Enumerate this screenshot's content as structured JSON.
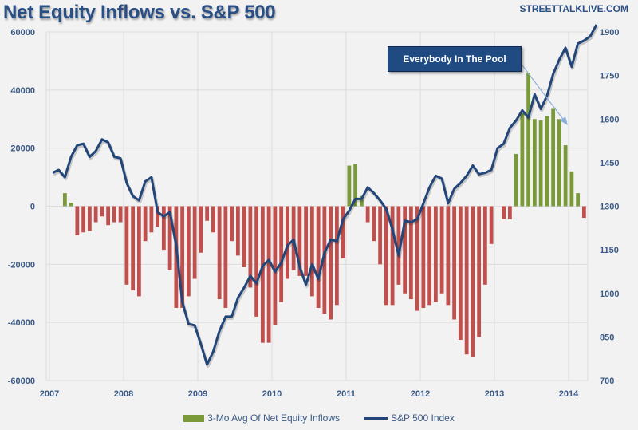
{
  "header": {
    "title": "Net Equity Inflows vs. S&P 500",
    "brand": "STREETTALKLIVE.COM"
  },
  "annotation": {
    "text": "Everybody In The Pool"
  },
  "colors": {
    "positive_bar": "#7a9a3a",
    "negative_bar": "#c0504d",
    "line": "#22457a",
    "callout_bg": "#1f4a82"
  },
  "chart_data": {
    "type": "bar+line",
    "title": "Net Equity Inflows vs. S&P 500",
    "xlabel": "",
    "ylabel_left": "",
    "ylabel_right": "",
    "x_ticks": [
      "2007",
      "2008",
      "2009",
      "2010",
      "2011",
      "2012",
      "2013",
      "2014"
    ],
    "y_left_ticks": [
      "60000",
      "40000",
      "20000",
      "0",
      "-20000",
      "-40000",
      "-60000"
    ],
    "y_left_lim": [
      -60000,
      60000
    ],
    "y_right_ticks": [
      "1900",
      "1750",
      "1600",
      "1450",
      "1300",
      "1150",
      "1000",
      "850",
      "700"
    ],
    "y_right_lim": [
      700,
      1900
    ],
    "grid": true,
    "legend_position": "bottom",
    "x_start": "2007-01",
    "frequency": "monthly",
    "series": [
      {
        "name": "3-Mo Avg Of Net Equity Inflows",
        "type": "bar",
        "axis": "left",
        "values": [
          0,
          0,
          4500,
          1200,
          -10000,
          -9000,
          -8500,
          -5500,
          -3500,
          -6500,
          -5500,
          -5500,
          -27000,
          -29000,
          -31000,
          -12000,
          -9000,
          -7000,
          -15000,
          -22000,
          -35000,
          -35000,
          -31000,
          -25000,
          -16000,
          -5000,
          -9000,
          -32000,
          -35000,
          -12000,
          -17000,
          -21000,
          -28000,
          -38000,
          -47000,
          -47000,
          -41000,
          -33000,
          -25000,
          -22000,
          -24000,
          -24000,
          -31000,
          -35000,
          -37000,
          -39000,
          -34000,
          -18000,
          14000,
          14500,
          3500,
          -5500,
          -12000,
          -20000,
          -34000,
          -34000,
          -27000,
          -30000,
          -32000,
          -36000,
          -35000,
          -34000,
          -33000,
          -30000,
          -34000,
          -39000,
          -46000,
          -51000,
          -52000,
          -45000,
          -27000,
          -13000,
          0,
          -4500,
          -4500,
          18000,
          32000,
          46000,
          30000,
          29500,
          31000,
          33500,
          30000,
          21000,
          12000,
          4500,
          -4000
        ]
      },
      {
        "name": "S&P 500 Index",
        "type": "line",
        "axis": "right",
        "values": [
          1415,
          1425,
          1400,
          1470,
          1510,
          1515,
          1470,
          1490,
          1530,
          1520,
          1470,
          1465,
          1380,
          1335,
          1320,
          1385,
          1400,
          1280,
          1265,
          1280,
          1165,
          970,
          895,
          890,
          825,
          755,
          800,
          870,
          920,
          920,
          985,
          1020,
          1060,
          1035,
          1095,
          1115,
          1075,
          1105,
          1165,
          1185,
          1090,
          1030,
          1100,
          1050,
          1140,
          1185,
          1180,
          1255,
          1285,
          1325,
          1325,
          1365,
          1345,
          1320,
          1290,
          1220,
          1130,
          1250,
          1245,
          1255,
          1310,
          1365,
          1405,
          1395,
          1310,
          1360,
          1380,
          1405,
          1440,
          1410,
          1415,
          1425,
          1500,
          1515,
          1570,
          1595,
          1630,
          1605,
          1685,
          1635,
          1680,
          1755,
          1805,
          1845,
          1780,
          1860,
          1870,
          1885,
          1925
        ]
      }
    ]
  }
}
